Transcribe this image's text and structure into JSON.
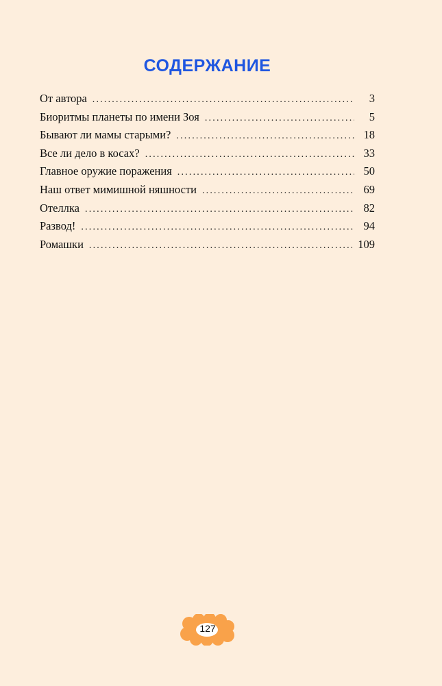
{
  "title": "СОДЕРЖАНИЕ",
  "toc": [
    {
      "label": "От автора",
      "page": "3"
    },
    {
      "label": "Биоритмы планеты по имени Зоя",
      "page": "5"
    },
    {
      "label": "Бывают ли мамы старыми?",
      "page": "18"
    },
    {
      "label": "Все ли дело в косах?",
      "page": "33"
    },
    {
      "label": "Главное оружие поражения",
      "page": "50"
    },
    {
      "label": "Наш ответ мимишной няшности",
      "page": "69"
    },
    {
      "label": "Отеллка",
      "page": "82"
    },
    {
      "label": "Развод!",
      "page": "94"
    },
    {
      "label": "Ромашки",
      "page": "109"
    }
  ],
  "folio": "127",
  "colors": {
    "title": "#1f56e0",
    "folio_badge": "#f9a24a",
    "background": "#fdeedd"
  }
}
